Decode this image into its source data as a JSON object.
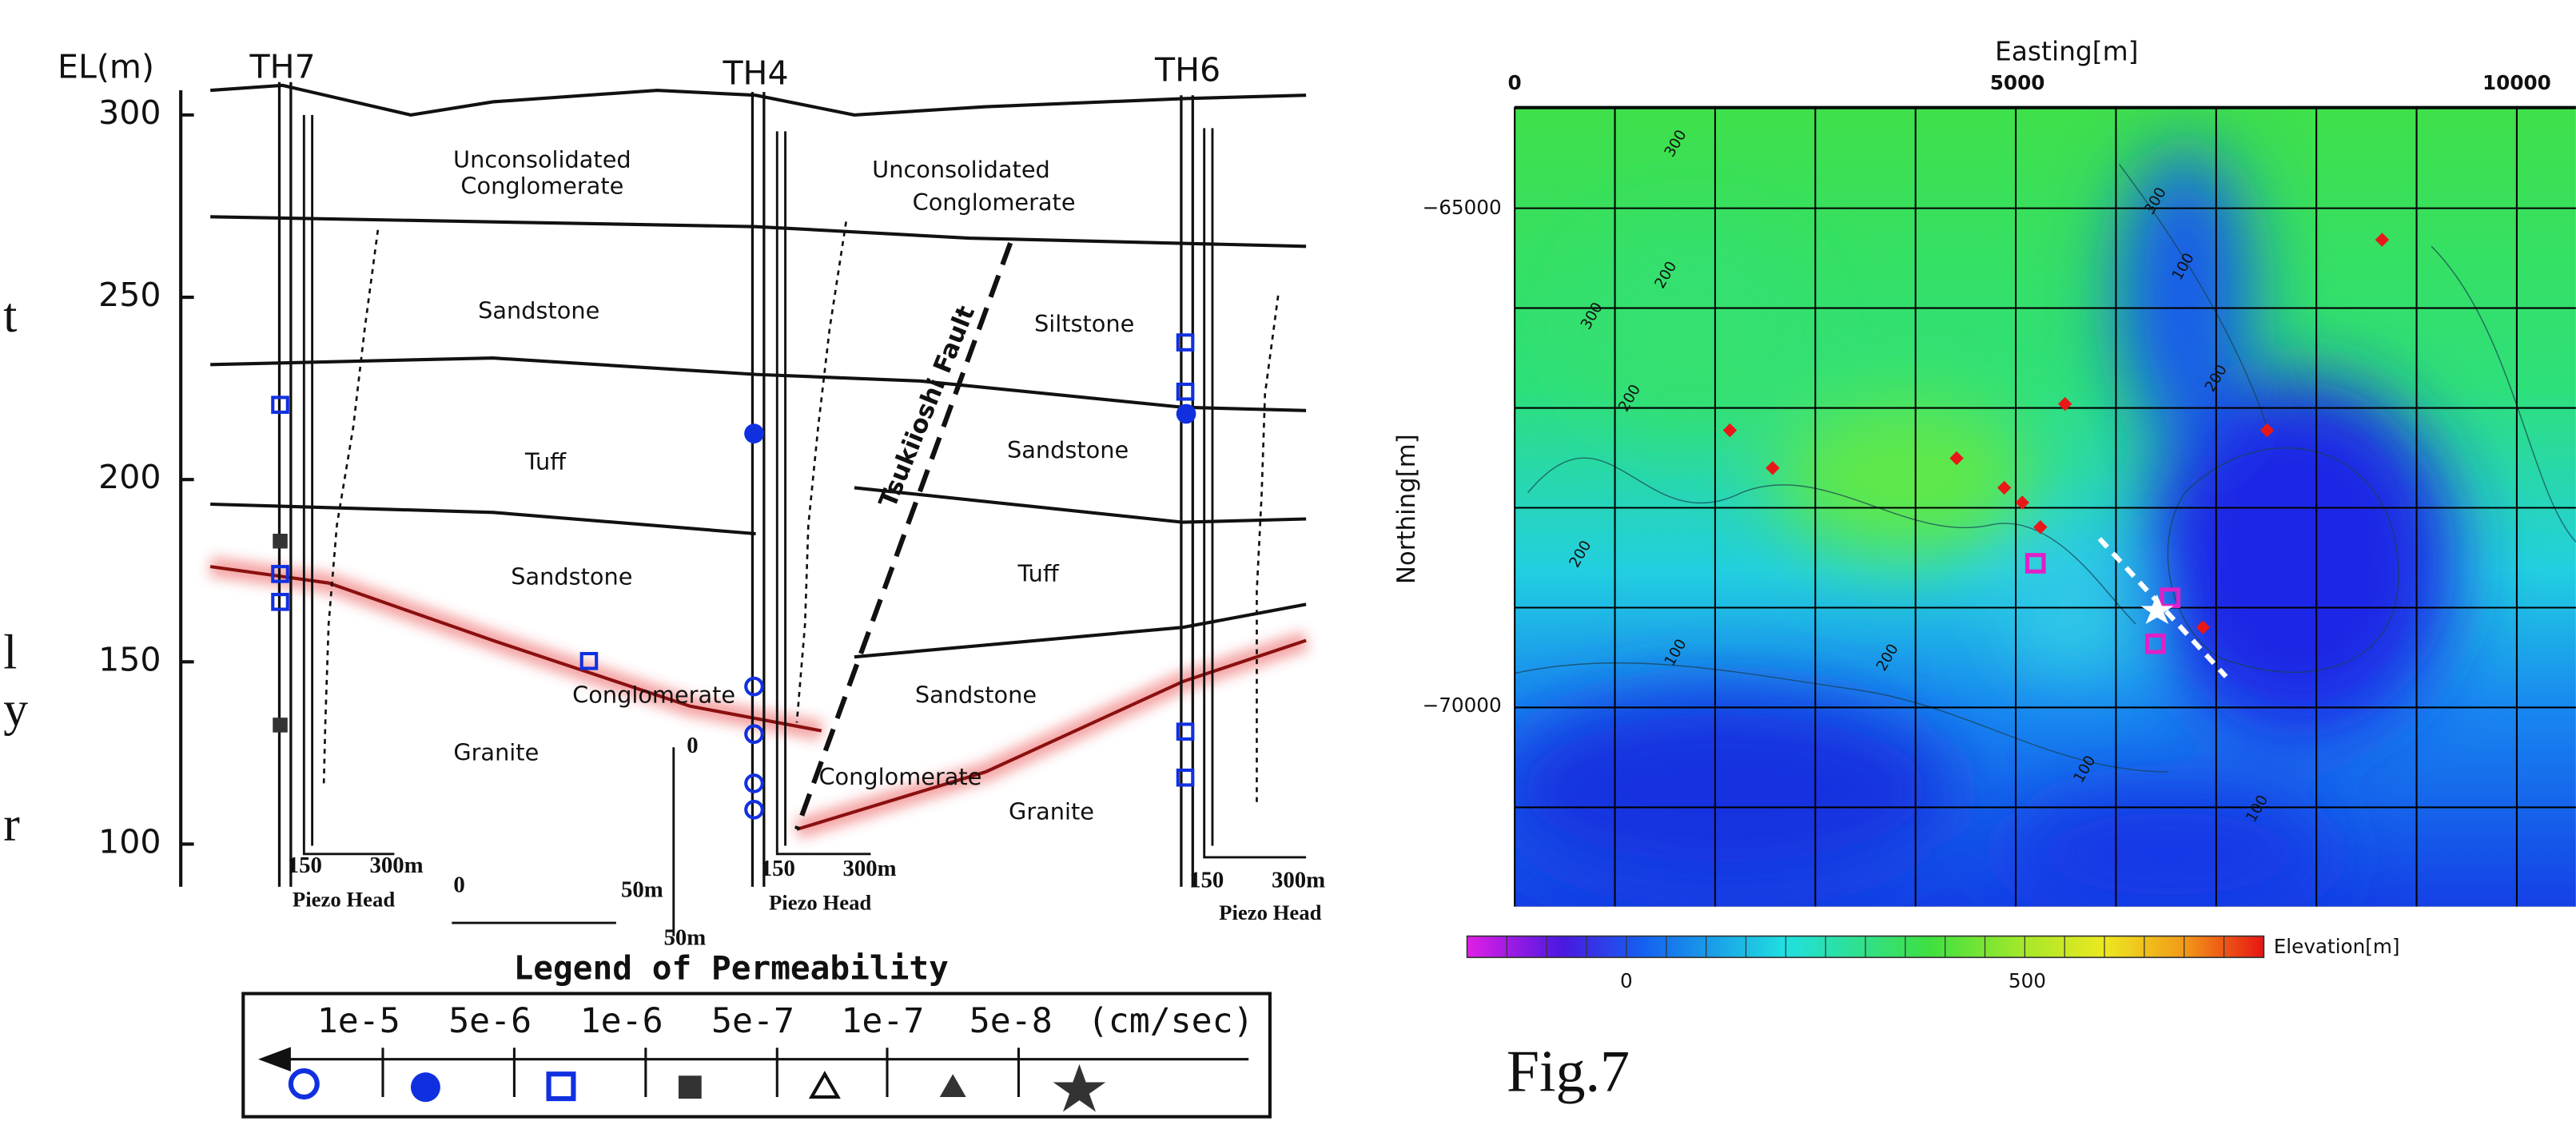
{
  "left_margin_fragments": [
    "t",
    "l",
    "y",
    "r"
  ],
  "cross_section": {
    "axis_label": "EL(m)",
    "boreholes": [
      "TH7",
      "TH4",
      "TH6"
    ],
    "elevation_ticks": [
      "300",
      "250",
      "200",
      "150",
      "100"
    ],
    "layers": [
      "Unconsolidated",
      "Conglomerate",
      "Unconsolidated",
      "Conglomerate",
      "Sandstone",
      "Siltstone",
      "Tuff",
      "Sandstone",
      "Sandstone",
      "Tuff",
      "Conglomerate",
      "Sandstone",
      "Granite",
      "Conglomerate",
      "Granite"
    ],
    "fault": "Tsukiioshi Fault",
    "piezo": [
      {
        "ticks": [
          "150",
          "300m"
        ],
        "label": "Piezo Head"
      },
      {
        "ticks": [
          "150",
          "300m"
        ],
        "label": "Piezo Head"
      },
      {
        "ticks": [
          "150",
          "300m"
        ],
        "label": "Piezo Head"
      }
    ],
    "horizontal_scale": [
      "0",
      "50m"
    ],
    "vertical_scale": [
      "0",
      "50m"
    ]
  },
  "legend": {
    "title": "Legend of Permeability",
    "values": [
      "1e-5",
      "5e-6",
      "1e-6",
      "5e-7",
      "1e-7",
      "5e-8"
    ],
    "unit": "(cm/sec)"
  },
  "map": {
    "x_title": "Easting[m]",
    "x_ticks": [
      "0",
      "5000",
      "10000"
    ],
    "y_title": "Northing[m]",
    "y_ticks": [
      "−65000",
      "−70000"
    ],
    "contour_labels": [
      "300",
      "200",
      "300",
      "200",
      "100",
      "200",
      "100",
      "200",
      "300",
      "100",
      "200",
      "100"
    ],
    "colorbar_label": "Elevation[m]",
    "colorbar_ticks": [
      "0",
      "500"
    ]
  },
  "caption": "Fig.7"
}
